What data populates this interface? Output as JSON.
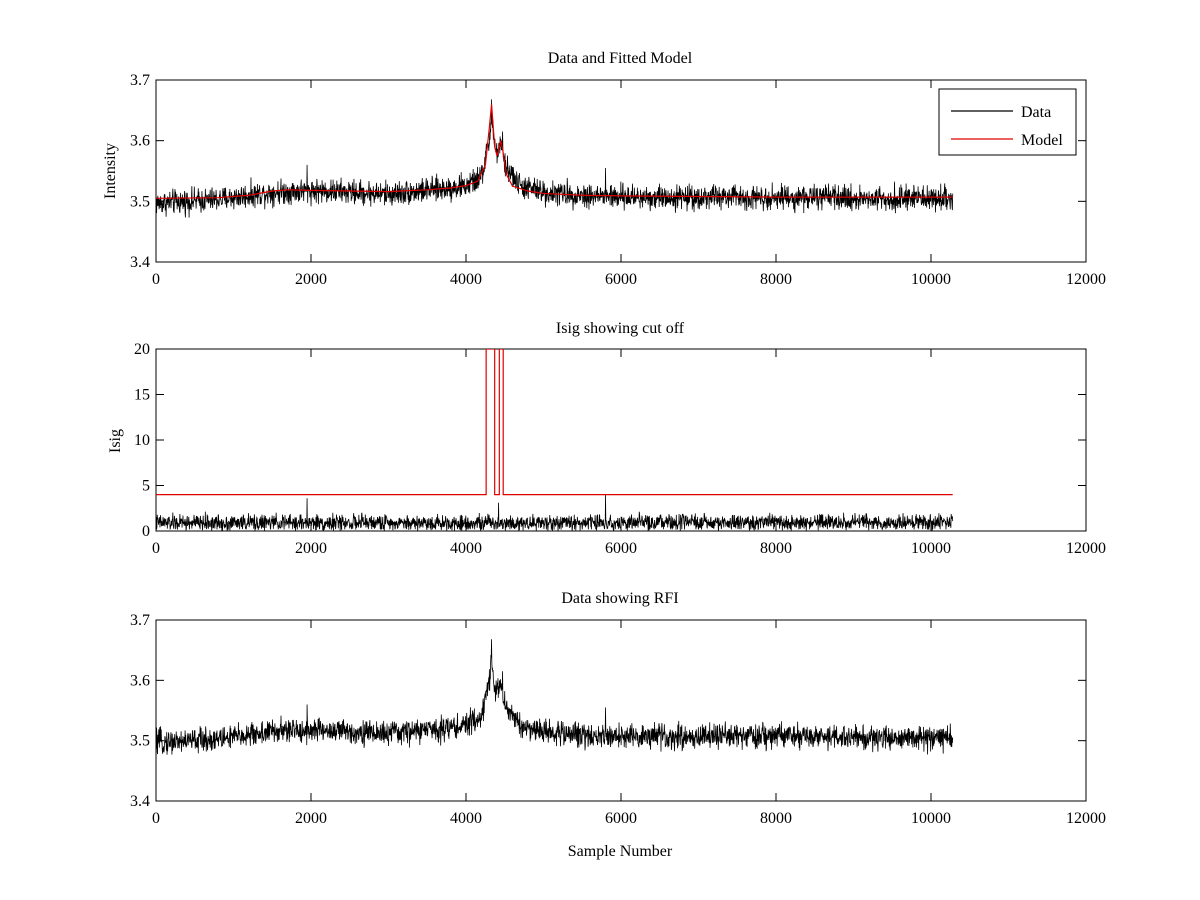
{
  "chart_data": [
    {
      "type": "line",
      "title": "Data and Fitted Model",
      "xlabel": "",
      "ylabel": "Intensity",
      "xlim": [
        0,
        12000
      ],
      "ylim": [
        3.4,
        3.7
      ],
      "xticks": [
        "0",
        "2000",
        "4000",
        "6000",
        "8000",
        "10000",
        "12000"
      ],
      "yticks": [
        "3.4",
        "3.5",
        "3.6",
        "3.7"
      ],
      "grid": false,
      "legend": {
        "position": "top-right",
        "entries": [
          "Data",
          "Model"
        ]
      },
      "series": [
        {
          "name": "Data",
          "color": "#000000",
          "kind": "noisy-trace",
          "x_range": [
            0,
            10280
          ],
          "baseline": [
            [
              0,
              3.497
            ],
            [
              800,
              3.503
            ],
            [
              1500,
              3.515
            ],
            [
              2000,
              3.518
            ],
            [
              2500,
              3.515
            ],
            [
              3000,
              3.512
            ],
            [
              3500,
              3.518
            ],
            [
              4000,
              3.525
            ],
            [
              4200,
              3.54
            ],
            [
              4300,
              3.6
            ],
            [
              4330,
              3.64
            ],
            [
              4380,
              3.58
            ],
            [
              4450,
              3.59
            ],
            [
              4500,
              3.56
            ],
            [
              4700,
              3.525
            ],
            [
              5000,
              3.515
            ],
            [
              5500,
              3.51
            ],
            [
              6000,
              3.507
            ],
            [
              7000,
              3.507
            ],
            [
              8000,
              3.507
            ],
            [
              9000,
              3.505
            ],
            [
              10280,
              3.505
            ]
          ],
          "noise_amplitude": 0.04,
          "spikes": [
            [
              4330,
              3.668
            ],
            [
              4470,
              3.615
            ],
            [
              5800,
              3.555
            ],
            [
              1950,
              3.56
            ]
          ]
        },
        {
          "name": "Model",
          "color": "#e00000",
          "kind": "line",
          "x": [
            0,
            800,
            1200,
            1500,
            1700,
            2000,
            2500,
            3000,
            3500,
            3800,
            4000,
            4150,
            4250,
            4300,
            4330,
            4370,
            4400,
            4450,
            4480,
            4520,
            4600,
            4800,
            5000,
            5500,
            6000,
            7000,
            8000,
            9000,
            10280
          ],
          "values": [
            3.505,
            3.506,
            3.51,
            3.517,
            3.519,
            3.518,
            3.517,
            3.516,
            3.519,
            3.522,
            3.526,
            3.533,
            3.56,
            3.62,
            3.66,
            3.59,
            3.575,
            3.6,
            3.58,
            3.545,
            3.525,
            3.517,
            3.513,
            3.51,
            3.509,
            3.508,
            3.507,
            3.507,
            3.507
          ]
        }
      ]
    },
    {
      "type": "line",
      "title": "Isig showing cut off",
      "xlabel": "",
      "ylabel": "Isig",
      "xlim": [
        0,
        12000
      ],
      "ylim": [
        0,
        20
      ],
      "xticks": [
        "0",
        "2000",
        "4000",
        "6000",
        "8000",
        "10000",
        "12000"
      ],
      "yticks": [
        "0",
        "5",
        "10",
        "15",
        "20"
      ],
      "grid": false,
      "series": [
        {
          "name": "Isig",
          "color": "#000000",
          "kind": "noisy-trace",
          "x_range": [
            0,
            10280
          ],
          "baseline": [
            [
              0,
              0.9
            ],
            [
              10280,
              0.9
            ]
          ],
          "noise_amplitude": 1.8,
          "spikes": [
            [
              5800,
              4.0
            ],
            [
              1950,
              3.6
            ],
            [
              4420,
              3.1
            ]
          ]
        },
        {
          "name": "Cut off",
          "color": "#e00000",
          "kind": "step",
          "x": [
            0,
            4260,
            4260,
            4370,
            4370,
            4430,
            4430,
            4480,
            4480,
            10280
          ],
          "values": [
            4,
            4,
            20,
            20,
            4,
            4,
            20,
            20,
            4,
            4
          ]
        }
      ]
    },
    {
      "type": "line",
      "title": "Data showing RFI",
      "xlabel": "Sample Number",
      "ylabel": "",
      "xlim": [
        0,
        12000
      ],
      "ylim": [
        3.4,
        3.7
      ],
      "xticks": [
        "0",
        "2000",
        "4000",
        "6000",
        "8000",
        "10000",
        "12000"
      ],
      "yticks": [
        "3.4",
        "3.5",
        "3.6",
        "3.7"
      ],
      "grid": false,
      "series": [
        {
          "name": "Data",
          "color": "#000000",
          "kind": "noisy-trace",
          "x_range": [
            0,
            10280
          ],
          "baseline": [
            [
              0,
              3.497
            ],
            [
              800,
              3.503
            ],
            [
              1500,
              3.515
            ],
            [
              2000,
              3.518
            ],
            [
              2500,
              3.515
            ],
            [
              3000,
              3.512
            ],
            [
              3500,
              3.518
            ],
            [
              4000,
              3.525
            ],
            [
              4200,
              3.54
            ],
            [
              4300,
              3.6
            ],
            [
              4330,
              3.64
            ],
            [
              4380,
              3.58
            ],
            [
              4450,
              3.59
            ],
            [
              4500,
              3.56
            ],
            [
              4700,
              3.525
            ],
            [
              5000,
              3.515
            ],
            [
              5500,
              3.51
            ],
            [
              6000,
              3.507
            ],
            [
              7000,
              3.507
            ],
            [
              8000,
              3.507
            ],
            [
              9000,
              3.505
            ],
            [
              10280,
              3.505
            ]
          ],
          "noise_amplitude": 0.04,
          "spikes": [
            [
              4330,
              3.668
            ],
            [
              4470,
              3.615
            ],
            [
              5800,
              3.555
            ],
            [
              1950,
              3.56
            ]
          ]
        }
      ]
    }
  ]
}
